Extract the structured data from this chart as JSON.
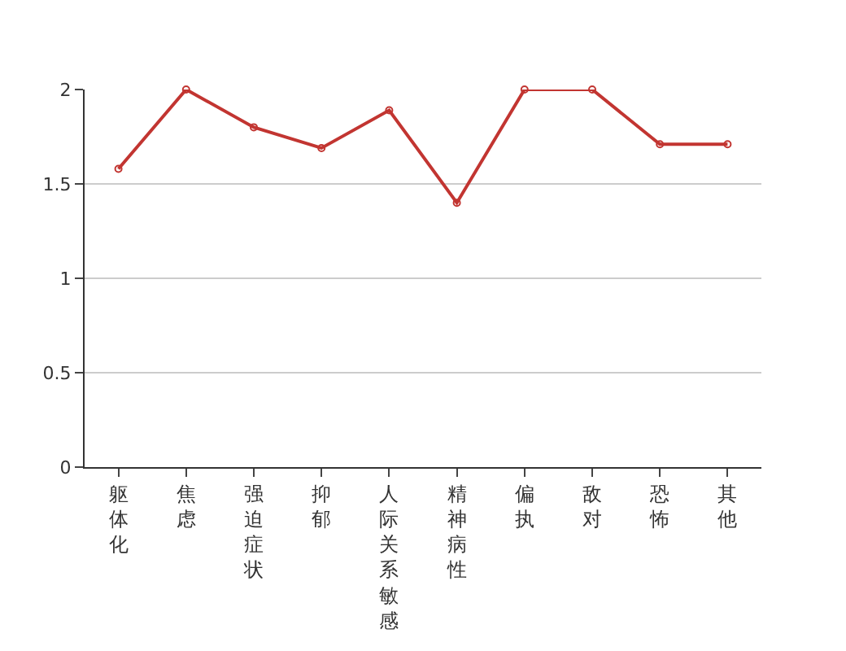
{
  "chart_data": {
    "type": "line",
    "categories": [
      "躯体化",
      "焦虑",
      "强迫症状",
      "抑郁",
      "人际关系敏感",
      "精神病性",
      "偏执",
      "敌对",
      "恐怖",
      "其他"
    ],
    "series": [
      {
        "color": "#c23531",
        "values": [
          1.58,
          2,
          1.8,
          1.69,
          1.89,
          1.4,
          2,
          2,
          1.71,
          1.71
        ]
      }
    ],
    "ylim": [
      0,
      2
    ],
    "yticks": [
      0,
      0.5,
      1,
      1.5,
      2
    ],
    "grid": "y",
    "marker": "circle",
    "line_style": "solid"
  }
}
